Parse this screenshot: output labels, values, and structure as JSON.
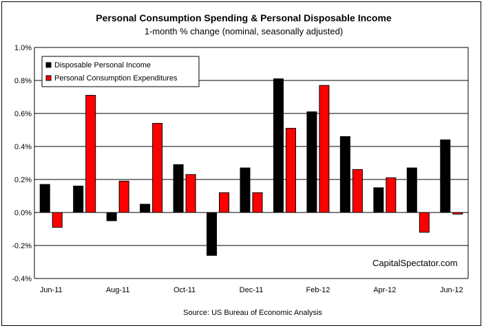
{
  "chart_data": {
    "type": "bar",
    "title": "Personal Consumption Spending & Personal Disposable Income",
    "subtitle": "1-month % change (nominal, seasonally adjusted)",
    "categories": [
      "Jun-11",
      "Jul-11",
      "Aug-11",
      "Sep-11",
      "Oct-11",
      "Nov-11",
      "Dec-11",
      "Jan-12",
      "Feb-12",
      "Mar-12",
      "Apr-12",
      "May-12",
      "Jun-12"
    ],
    "x_tick_labels": [
      "Jun-11",
      "",
      "Aug-11",
      "",
      "Oct-11",
      "",
      "Dec-11",
      "",
      "Feb-12",
      "",
      "Apr-12",
      "",
      "Jun-12"
    ],
    "series": [
      {
        "name": "Disposable Personal Income",
        "color": "#000000",
        "values": [
          0.17,
          0.16,
          -0.05,
          0.05,
          0.29,
          -0.26,
          0.27,
          0.81,
          0.61,
          0.46,
          0.15,
          0.27,
          0.44
        ]
      },
      {
        "name": "Personal Consumption Expenditures",
        "color": "#ff0000",
        "values": [
          -0.09,
          0.71,
          0.19,
          0.54,
          0.23,
          0.12,
          0.12,
          0.51,
          0.77,
          0.26,
          0.21,
          -0.12,
          -0.01
        ]
      }
    ],
    "ylim": [
      -0.4,
      1.0
    ],
    "y_ticks": [
      -0.4,
      -0.2,
      0.0,
      0.2,
      0.4,
      0.6,
      0.8,
      1.0
    ],
    "y_tick_labels": [
      "-0.4%",
      "-0.2%",
      "0.0%",
      "0.2%",
      "0.4%",
      "0.6%",
      "0.8%",
      "1.0%"
    ],
    "grid": true,
    "legend_position": "top-left",
    "watermark": "CapitalSpectator.com",
    "source": "Source: US Bureau of Economic Analysis"
  }
}
